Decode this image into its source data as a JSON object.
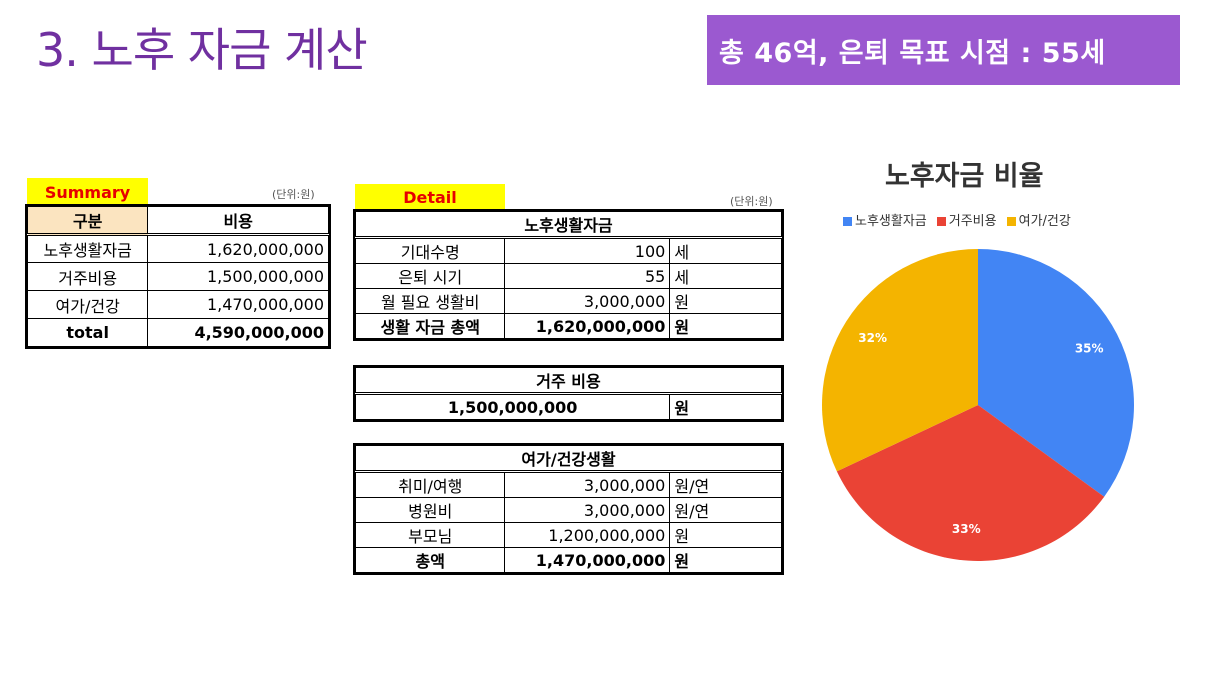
{
  "page": {
    "title": "3. 노후 자금 계산",
    "banner": "총 46억, 은퇴 목표 시점  : 55세"
  },
  "summary": {
    "tag": "Summary",
    "unit": "(단위:원)",
    "header": [
      "구분",
      "비용"
    ],
    "rows": [
      [
        "노후생활자금",
        "1,620,000,000"
      ],
      [
        "거주비용",
        "1,500,000,000"
      ],
      [
        "여가/건강",
        "1,470,000,000"
      ]
    ],
    "total": [
      "total",
      "4,590,000,000"
    ]
  },
  "detail": {
    "tag": "Detail",
    "unit": "(단위:원)",
    "living": {
      "title": "노후생활자금",
      "rows": [
        [
          "기대수명",
          "100",
          "세"
        ],
        [
          "은퇴 시기",
          "55",
          "세"
        ],
        [
          "월 필요 생활비",
          "3,000,000",
          "원"
        ]
      ],
      "total": [
        "생활 자금 총액",
        "1,620,000,000",
        "원"
      ]
    },
    "housing": {
      "title": "거주 비용",
      "value": "1,500,000,000",
      "unit": "원"
    },
    "leisure": {
      "title": "여가/건강생활",
      "rows": [
        [
          "취미/여행",
          "3,000,000",
          "원/연"
        ],
        [
          "병원비",
          "3,000,000",
          "원/연"
        ],
        [
          "부모님",
          "1,200,000,000",
          "원"
        ]
      ],
      "total": [
        "총액",
        "1,470,000,000",
        "원"
      ]
    }
  },
  "chart_data": {
    "type": "pie",
    "title": "노후자금 비율",
    "categories": [
      "노후생활자금",
      "거주비용",
      "여가/건강"
    ],
    "values": [
      35,
      33,
      32
    ],
    "labels": [
      "35%",
      "33%",
      "32%"
    ],
    "colors": [
      "#4285f4",
      "#ea4335",
      "#f4b400"
    ],
    "legend": "top"
  }
}
